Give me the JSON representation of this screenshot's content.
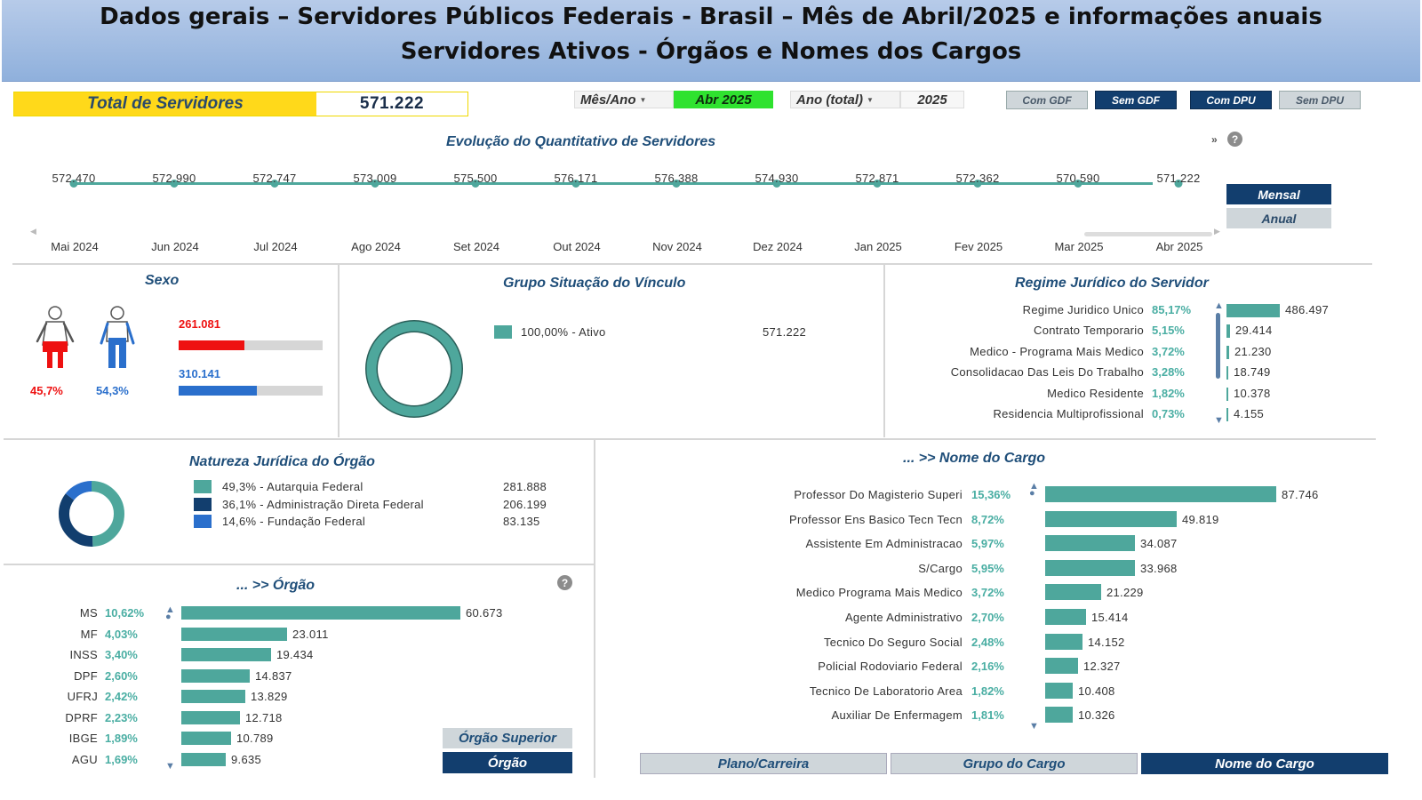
{
  "header": {
    "line1": "Dados gerais – Servidores Públicos Federais - Brasil – Mês de Abril/2025 e informações anuais",
    "line2": "Servidores Ativos - Órgãos e Nomes dos Cargos"
  },
  "total": {
    "label": "Total de Servidores",
    "value": "571.222"
  },
  "filters": {
    "month_label": "Mês/Ano",
    "month_value": "Abr 2025",
    "year_label": "Ano (total)",
    "year_value": "2025"
  },
  "toggles": {
    "com_gdf": "Com GDF",
    "sem_gdf": "Sem GDF",
    "com_dpu": "Com DPU",
    "sem_dpu": "Sem DPU"
  },
  "colors": {
    "teal": "#4ea79c",
    "navy": "#1f4e79",
    "dark_button": "#123e6e",
    "female": "#ee1111",
    "male": "#2a6fcc",
    "green_filter": "#2fe22f",
    "yellow_total": "#ffd91a"
  },
  "evolucao": {
    "title": "Evolução do Quantitativo de Servidores",
    "more": "»",
    "help": "?",
    "view_mensal": "Mensal",
    "view_anual": "Anual",
    "points": [
      {
        "month": "Mai 2024",
        "value": "572.470"
      },
      {
        "month": "Jun 2024",
        "value": "572.990"
      },
      {
        "month": "Jul 2024",
        "value": "572.747"
      },
      {
        "month": "Ago 2024",
        "value": "573.009"
      },
      {
        "month": "Set 2024",
        "value": "575.500"
      },
      {
        "month": "Out 2024",
        "value": "576.171"
      },
      {
        "month": "Nov 2024",
        "value": "576.388"
      },
      {
        "month": "Dez 2024",
        "value": "574.930"
      },
      {
        "month": "Jan 2025",
        "value": "572.871"
      },
      {
        "month": "Fev 2025",
        "value": "572.362"
      },
      {
        "month": "Mar 2025",
        "value": "570.590"
      },
      {
        "month": "Abr 2025",
        "value": "571.222"
      }
    ]
  },
  "sexo": {
    "title": "Sexo",
    "female_count": "261.081",
    "female_pct": "45,7%",
    "female_share": 0.457,
    "male_count": "310.141",
    "male_pct": "54,3%",
    "male_share": 0.543,
    "female_icon": "female-person-icon",
    "male_icon": "male-person-icon"
  },
  "vinculo": {
    "title": "Grupo Situação do Vínculo",
    "items": [
      {
        "label": "100,00% - Ativo",
        "value": "571.222",
        "share": 1.0
      }
    ]
  },
  "regime": {
    "title": "Regime Jurídico do Servidor",
    "max": 486497,
    "rows": [
      {
        "label": "Regime Juridico Unico",
        "pct": "85,17%",
        "value": "486.497",
        "n": 486497
      },
      {
        "label": "Contrato Temporario",
        "pct": "5,15%",
        "value": "29.414",
        "n": 29414
      },
      {
        "label": "Medico - Programa Mais Medico",
        "pct": "3,72%",
        "value": "21.230",
        "n": 21230
      },
      {
        "label": "Consolidacao Das Leis Do Trabalho",
        "pct": "3,28%",
        "value": "18.749",
        "n": 18749
      },
      {
        "label": "Medico Residente",
        "pct": "1,82%",
        "value": "10.378",
        "n": 10378
      },
      {
        "label": "Residencia Multiprofissional",
        "pct": "0,73%",
        "value": "4.155",
        "n": 4155
      }
    ]
  },
  "natureza": {
    "title": "Natureza Jurídica do Órgão",
    "items": [
      {
        "label": "49,3% - Autarquia Federal",
        "value": "281.888",
        "share": 0.493,
        "color": "#4ea79c"
      },
      {
        "label": "36,1% - Administração Direta Federal",
        "value": "206.199",
        "share": 0.361,
        "color": "#123e6e"
      },
      {
        "label": "14,6% - Fundação Federal",
        "value": "83.135",
        "share": 0.146,
        "color": "#2a6fcc"
      }
    ]
  },
  "orgao": {
    "title": "... >> Órgão",
    "help": "?",
    "max": 60673,
    "rows": [
      {
        "label": "MS",
        "pct": "10,62%",
        "value": "60.673",
        "n": 60673
      },
      {
        "label": "MF",
        "pct": "4,03%",
        "value": "23.011",
        "n": 23011
      },
      {
        "label": "INSS",
        "pct": "3,40%",
        "value": "19.434",
        "n": 19434
      },
      {
        "label": "DPF",
        "pct": "2,60%",
        "value": "14.837",
        "n": 14837
      },
      {
        "label": "UFRJ",
        "pct": "2,42%",
        "value": "13.829",
        "n": 13829
      },
      {
        "label": "DPRF",
        "pct": "2,23%",
        "value": "12.718",
        "n": 12718
      },
      {
        "label": "IBGE",
        "pct": "1,89%",
        "value": "10.789",
        "n": 10789
      },
      {
        "label": "AGU",
        "pct": "1,69%",
        "value": "9.635",
        "n": 9635
      }
    ],
    "btn_superior": "Órgão Superior",
    "btn_orgao": "Órgão"
  },
  "cargo": {
    "title": "... >> Nome do Cargo",
    "max": 87746,
    "rows": [
      {
        "label": "Professor Do Magisterio Superi",
        "pct": "15,36%",
        "value": "87.746",
        "n": 87746
      },
      {
        "label": "Professor Ens Basico Tecn Tecn",
        "pct": "8,72%",
        "value": "49.819",
        "n": 49819
      },
      {
        "label": "Assistente Em Administracao",
        "pct": "5,97%",
        "value": "34.087",
        "n": 34087
      },
      {
        "label": "S/Cargo",
        "pct": "5,95%",
        "value": "33.968",
        "n": 33968
      },
      {
        "label": "Medico Programa Mais Medico",
        "pct": "3,72%",
        "value": "21.229",
        "n": 21229
      },
      {
        "label": "Agente Administrativo",
        "pct": "2,70%",
        "value": "15.414",
        "n": 15414
      },
      {
        "label": "Tecnico Do Seguro Social",
        "pct": "2,48%",
        "value": "14.152",
        "n": 14152
      },
      {
        "label": "Policial Rodoviario Federal",
        "pct": "2,16%",
        "value": "12.327",
        "n": 12327
      },
      {
        "label": "Tecnico De Laboratorio Area",
        "pct": "1,82%",
        "value": "10.408",
        "n": 10408
      },
      {
        "label": "Auxiliar De Enfermagem",
        "pct": "1,81%",
        "value": "10.326",
        "n": 10326
      }
    ]
  },
  "tabs": {
    "plano": "Plano/Carreira",
    "grupo": "Grupo do Cargo",
    "nome": "Nome do Cargo"
  }
}
